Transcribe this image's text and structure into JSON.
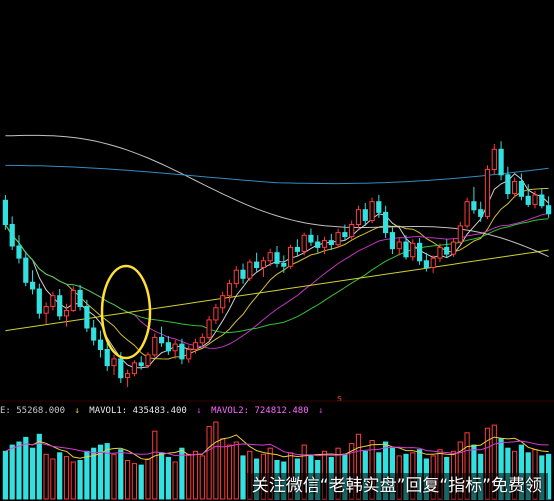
{
  "chart_data": {
    "type": "candlestick",
    "indicator_legend": {
      "vol_label": "E: 55268.000",
      "mavol1_label": "MAVOL1: 435483.400",
      "mavol2_label": "MAVOL2: 724812.480",
      "mavol1_arrow": "↓",
      "mavol2_arrow": "↓",
      "vol_arrow": "↓"
    },
    "markers": [
      "s",
      "s"
    ],
    "watermark": "关注微信“老韩实盘”回复“指标”免费领",
    "colors": {
      "up": "#ff3b3b",
      "down": "#33e0e0",
      "ma5": "#e6e6e6",
      "ma10": "#e6d23a",
      "ma20": "#d63ad6",
      "ma30": "#3ad63a",
      "ma60": "#d6d6d6",
      "ma120": "#3a9ad6",
      "ma250": "#e6e63a",
      "mavol1": "#e6d23a",
      "mavol2": "#d63ad6",
      "highlight": "#ffe033",
      "legend_mavol1": "#e6e6e6",
      "legend_mavol2": "#ff66ff",
      "marker": "#ff4040"
    },
    "ohlc": [
      [
        31.2,
        31.6,
        29.0,
        29.4
      ],
      [
        29.4,
        30.0,
        27.5,
        27.8
      ],
      [
        27.8,
        28.6,
        26.5,
        26.9
      ],
      [
        26.9,
        27.4,
        24.8,
        25.1
      ],
      [
        25.1,
        26.0,
        24.2,
        24.6
      ],
      [
        24.6,
        25.0,
        22.4,
        22.8
      ],
      [
        22.8,
        23.6,
        22.0,
        23.3
      ],
      [
        23.3,
        24.4,
        23.0,
        24.1
      ],
      [
        24.1,
        24.6,
        22.3,
        22.6
      ],
      [
        22.6,
        23.5,
        21.8,
        23.0
      ],
      [
        23.0,
        24.8,
        22.9,
        24.5
      ],
      [
        24.5,
        24.9,
        23.0,
        23.3
      ],
      [
        23.3,
        23.8,
        21.4,
        21.7
      ],
      [
        21.7,
        22.3,
        20.4,
        20.8
      ],
      [
        20.8,
        21.5,
        19.5,
        20.1
      ],
      [
        20.1,
        20.6,
        18.5,
        18.9
      ],
      [
        18.9,
        19.7,
        18.2,
        19.4
      ],
      [
        19.4,
        19.9,
        17.6,
        18.0
      ],
      [
        18.0,
        18.6,
        17.3,
        18.3
      ],
      [
        18.3,
        19.3,
        18.1,
        19.1
      ],
      [
        19.1,
        19.6,
        18.6,
        18.9
      ],
      [
        18.9,
        19.9,
        18.7,
        19.7
      ],
      [
        19.7,
        21.3,
        19.5,
        21.0
      ],
      [
        21.0,
        21.8,
        20.3,
        20.6
      ],
      [
        20.6,
        21.1,
        19.7,
        20.0
      ],
      [
        20.0,
        20.8,
        19.4,
        20.5
      ],
      [
        20.5,
        20.9,
        19.0,
        19.4
      ],
      [
        19.4,
        20.4,
        19.1,
        20.1
      ],
      [
        20.1,
        20.9,
        19.8,
        20.6
      ],
      [
        20.6,
        21.3,
        20.3,
        21.0
      ],
      [
        21.0,
        22.6,
        20.8,
        22.3
      ],
      [
        22.3,
        23.5,
        22.0,
        23.2
      ],
      [
        23.2,
        24.4,
        22.8,
        24.1
      ],
      [
        24.1,
        25.3,
        23.6,
        25.0
      ],
      [
        25.0,
        26.3,
        24.7,
        26.0
      ],
      [
        26.0,
        26.5,
        25.0,
        25.4
      ],
      [
        25.4,
        26.8,
        25.2,
        26.6
      ],
      [
        26.6,
        27.3,
        25.9,
        26.2
      ],
      [
        26.2,
        27.0,
        25.5,
        26.7
      ],
      [
        26.7,
        27.6,
        26.3,
        27.3
      ],
      [
        27.3,
        27.8,
        26.2,
        26.5
      ],
      [
        26.5,
        27.1,
        25.8,
        26.3
      ],
      [
        26.3,
        27.9,
        26.1,
        27.7
      ],
      [
        27.7,
        28.3,
        27.0,
        27.4
      ],
      [
        27.4,
        28.8,
        27.1,
        28.6
      ],
      [
        28.6,
        29.1,
        27.8,
        28.1
      ],
      [
        28.1,
        28.6,
        27.3,
        27.7
      ],
      [
        27.7,
        28.5,
        27.2,
        28.2
      ],
      [
        28.2,
        28.7,
        27.5,
        27.9
      ],
      [
        27.9,
        29.1,
        27.7,
        28.8
      ],
      [
        28.8,
        29.4,
        28.2,
        28.5
      ],
      [
        28.5,
        29.7,
        28.3,
        29.4
      ],
      [
        29.4,
        30.8,
        29.1,
        30.5
      ],
      [
        30.5,
        31.0,
        29.3,
        29.7
      ],
      [
        29.7,
        31.4,
        29.5,
        31.1
      ],
      [
        31.1,
        31.6,
        29.9,
        30.3
      ],
      [
        30.3,
        30.8,
        28.4,
        28.8
      ],
      [
        28.8,
        29.2,
        27.2,
        27.6
      ],
      [
        27.6,
        28.4,
        27.1,
        28.1
      ],
      [
        28.1,
        28.6,
        26.8,
        27.0
      ],
      [
        27.0,
        28.3,
        26.7,
        28.0
      ],
      [
        28.0,
        28.4,
        26.4,
        26.7
      ],
      [
        26.7,
        27.3,
        25.9,
        26.2
      ],
      [
        26.2,
        27.1,
        25.8,
        26.9
      ],
      [
        26.9,
        28.0,
        26.6,
        27.7
      ],
      [
        27.7,
        28.3,
        26.9,
        27.2
      ],
      [
        27.2,
        28.4,
        27.0,
        28.1
      ],
      [
        28.1,
        29.6,
        27.9,
        29.3
      ],
      [
        29.3,
        31.4,
        29.1,
        31.1
      ],
      [
        31.1,
        32.2,
        30.2,
        30.5
      ],
      [
        30.5,
        31.1,
        29.6,
        30.0
      ],
      [
        30.0,
        33.8,
        29.8,
        33.5
      ],
      [
        33.5,
        35.4,
        33.1,
        35.0
      ],
      [
        35.0,
        35.6,
        32.7,
        33.1
      ],
      [
        33.1,
        33.7,
        31.3,
        31.7
      ],
      [
        31.7,
        32.9,
        31.4,
        32.6
      ],
      [
        32.6,
        33.2,
        31.2,
        31.5
      ],
      [
        31.5,
        32.4,
        30.7,
        30.9
      ],
      [
        30.9,
        31.9,
        30.6,
        31.6
      ],
      [
        31.6,
        32.1,
        30.6,
        30.8
      ],
      [
        30.8,
        31.5,
        29.9,
        30.2
      ]
    ],
    "volumes": [
      0.62,
      0.7,
      0.74,
      0.8,
      0.66,
      0.84,
      0.58,
      0.52,
      0.6,
      0.55,
      0.48,
      0.5,
      0.62,
      0.66,
      0.7,
      0.72,
      0.58,
      0.64,
      0.5,
      0.46,
      0.44,
      0.52,
      0.88,
      0.6,
      0.54,
      0.48,
      0.66,
      0.58,
      0.62,
      0.56,
      0.94,
      1.0,
      0.78,
      0.7,
      0.74,
      0.56,
      0.62,
      0.52,
      0.58,
      0.66,
      0.5,
      0.48,
      0.6,
      0.52,
      0.7,
      0.56,
      0.5,
      0.62,
      0.54,
      0.66,
      0.58,
      0.72,
      0.84,
      0.62,
      0.76,
      0.6,
      0.74,
      0.66,
      0.56,
      0.58,
      0.6,
      0.64,
      0.52,
      0.56,
      0.64,
      0.54,
      0.62,
      0.74,
      0.86,
      0.7,
      0.58,
      0.92,
      0.96,
      0.78,
      0.66,
      0.62,
      0.7,
      0.6,
      0.64,
      0.56,
      0.58
    ]
  }
}
